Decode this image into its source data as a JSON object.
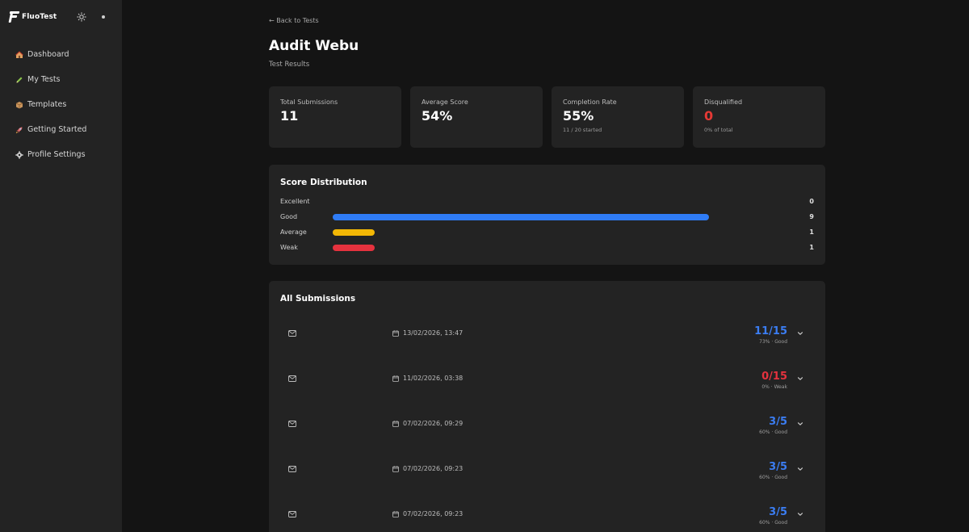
{
  "app": {
    "name": "FluoTest"
  },
  "sidebar": {
    "items": [
      {
        "label": "Dashboard",
        "icon": "house-icon"
      },
      {
        "label": "My Tests",
        "icon": "pencil-icon"
      },
      {
        "label": "Templates",
        "icon": "package-icon"
      },
      {
        "label": "Getting Started",
        "icon": "rocket-icon"
      },
      {
        "label": "Profile Settings",
        "icon": "gear-icon"
      }
    ]
  },
  "header": {
    "back_label": "← Back to Tests",
    "title": "Audit Webu",
    "subtitle": "Test Results"
  },
  "stats": [
    {
      "label": "Total Submissions",
      "value": "11",
      "sub": ""
    },
    {
      "label": "Average Score",
      "value": "54%",
      "sub": ""
    },
    {
      "label": "Completion Rate",
      "value": "55%",
      "sub": "11 / 20 started"
    },
    {
      "label": "Disqualified",
      "value": "0",
      "sub": "0% of total"
    }
  ],
  "distribution": {
    "title": "Score Distribution",
    "rows": [
      {
        "label": "Excellent",
        "count": "0",
        "value": 0,
        "color": "#2f7cf6"
      },
      {
        "label": "Good",
        "count": "9",
        "value": 9,
        "color": "#2f7cf6"
      },
      {
        "label": "Average",
        "count": "1",
        "value": 1,
        "color": "#f2b705"
      },
      {
        "label": "Weak",
        "count": "1",
        "value": 1,
        "color": "#e5323e"
      }
    ],
    "max": 10
  },
  "submissions": {
    "title": "All Submissions",
    "rows": [
      {
        "date": "13/02/2026, 13:47",
        "score": "11/15",
        "meta": "73% · Good",
        "color": "#3b7df2"
      },
      {
        "date": "11/02/2026, 03:38",
        "score": "0/15",
        "meta": "0% · Weak",
        "color": "#e5323e"
      },
      {
        "date": "07/02/2026, 09:29",
        "score": "3/5",
        "meta": "60% · Good",
        "color": "#3b7df2"
      },
      {
        "date": "07/02/2026, 09:23",
        "score": "3/5",
        "meta": "60% · Good",
        "color": "#3b7df2"
      },
      {
        "date": "07/02/2026, 09:23",
        "score": "3/5",
        "meta": "60% · Good",
        "color": "#3b7df2"
      }
    ]
  }
}
